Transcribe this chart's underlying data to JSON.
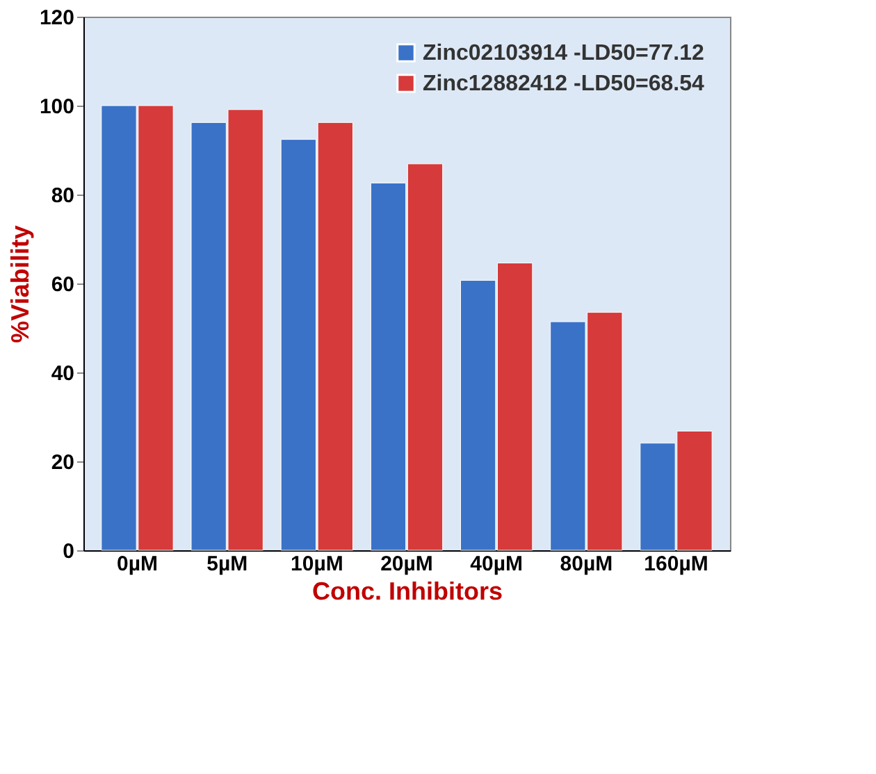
{
  "chart_data": {
    "type": "bar",
    "xlabel": "Conc. Inhibitors",
    "ylabel": "%Viability",
    "categories": [
      "0µM",
      "5µM",
      "10µM",
      "20µM",
      "40µM",
      "80µM",
      "160µM"
    ],
    "series": [
      {
        "name": "Zinc02103914 -LD50=77.12",
        "color": "#3a72c8",
        "values": [
          100,
          96.2,
          92.4,
          82.6,
          60.7,
          51.4,
          24.1
        ]
      },
      {
        "name": "Zinc12882412 -LD50=68.54",
        "color": "#d63a3a",
        "values": [
          100,
          99.1,
          96.2,
          86.9,
          64.6,
          53.5,
          26.8
        ]
      }
    ],
    "ylim": [
      0,
      120
    ],
    "yticks": [
      0,
      20,
      40,
      60,
      80,
      100,
      120
    ],
    "grid": false,
    "legend": "top right"
  }
}
